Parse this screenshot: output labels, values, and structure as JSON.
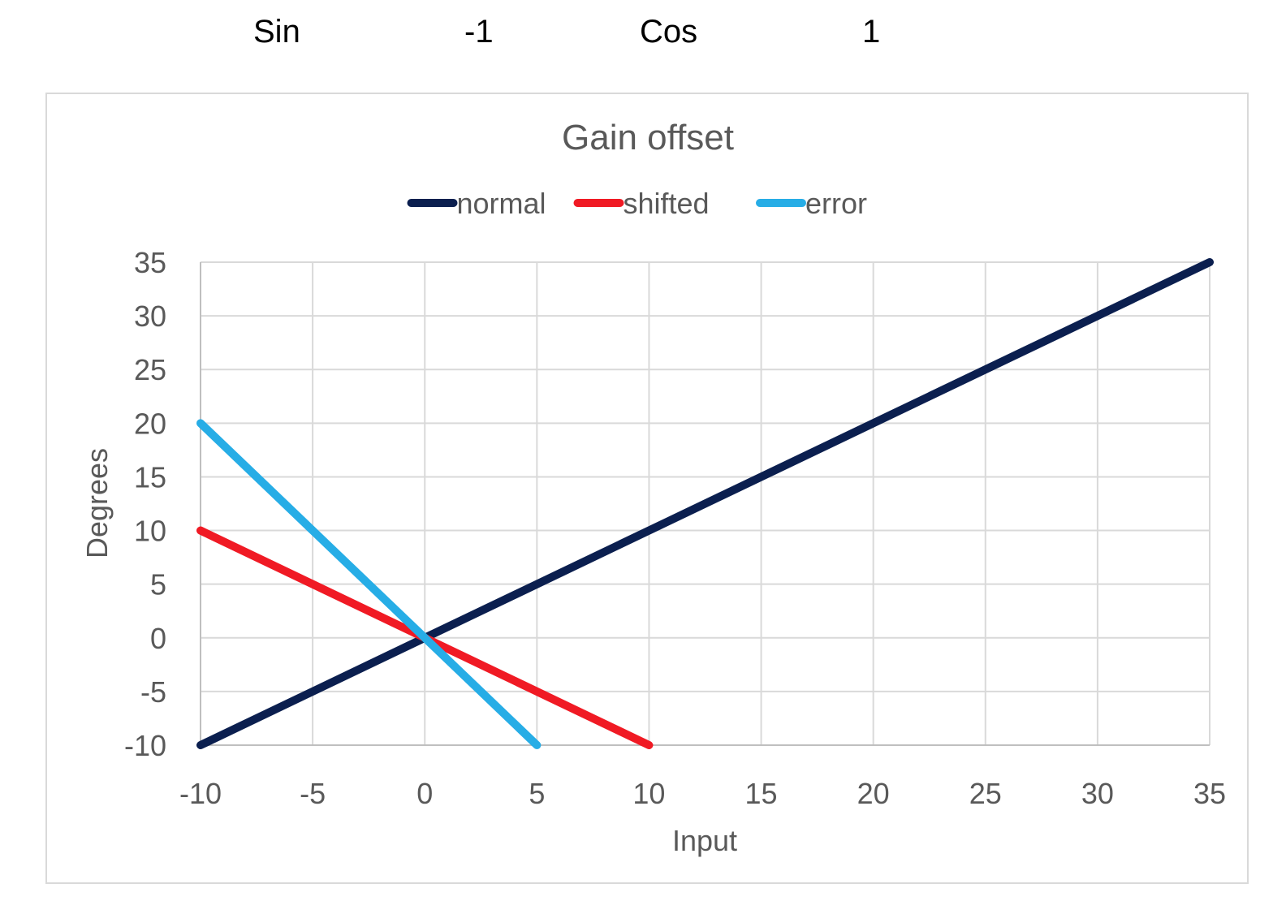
{
  "sheet": {
    "sin_label": "Sin",
    "sin_value": "-1",
    "cos_label": "Cos",
    "cos_value": "1"
  },
  "chart_data": {
    "type": "line",
    "title": "Gain offset",
    "xlabel": "Input",
    "ylabel": "Degrees",
    "xlim": [
      -10,
      35
    ],
    "ylim": [
      -10,
      35
    ],
    "xticks": [
      -10,
      -5,
      0,
      5,
      10,
      15,
      20,
      25,
      30,
      35
    ],
    "yticks": [
      -10,
      -5,
      0,
      5,
      10,
      15,
      20,
      25,
      30,
      35
    ],
    "grid": true,
    "legend_position": "top",
    "series": [
      {
        "name": "normal",
        "color": "#0b1f4f",
        "x": [
          -10,
          35
        ],
        "y": [
          -10,
          35
        ]
      },
      {
        "name": "shifted",
        "color": "#f01a24",
        "x": [
          -10,
          10
        ],
        "y": [
          10,
          -10
        ]
      },
      {
        "name": "error",
        "color": "#27ade6",
        "x": [
          -10,
          5
        ],
        "y": [
          20,
          -10
        ]
      }
    ]
  }
}
